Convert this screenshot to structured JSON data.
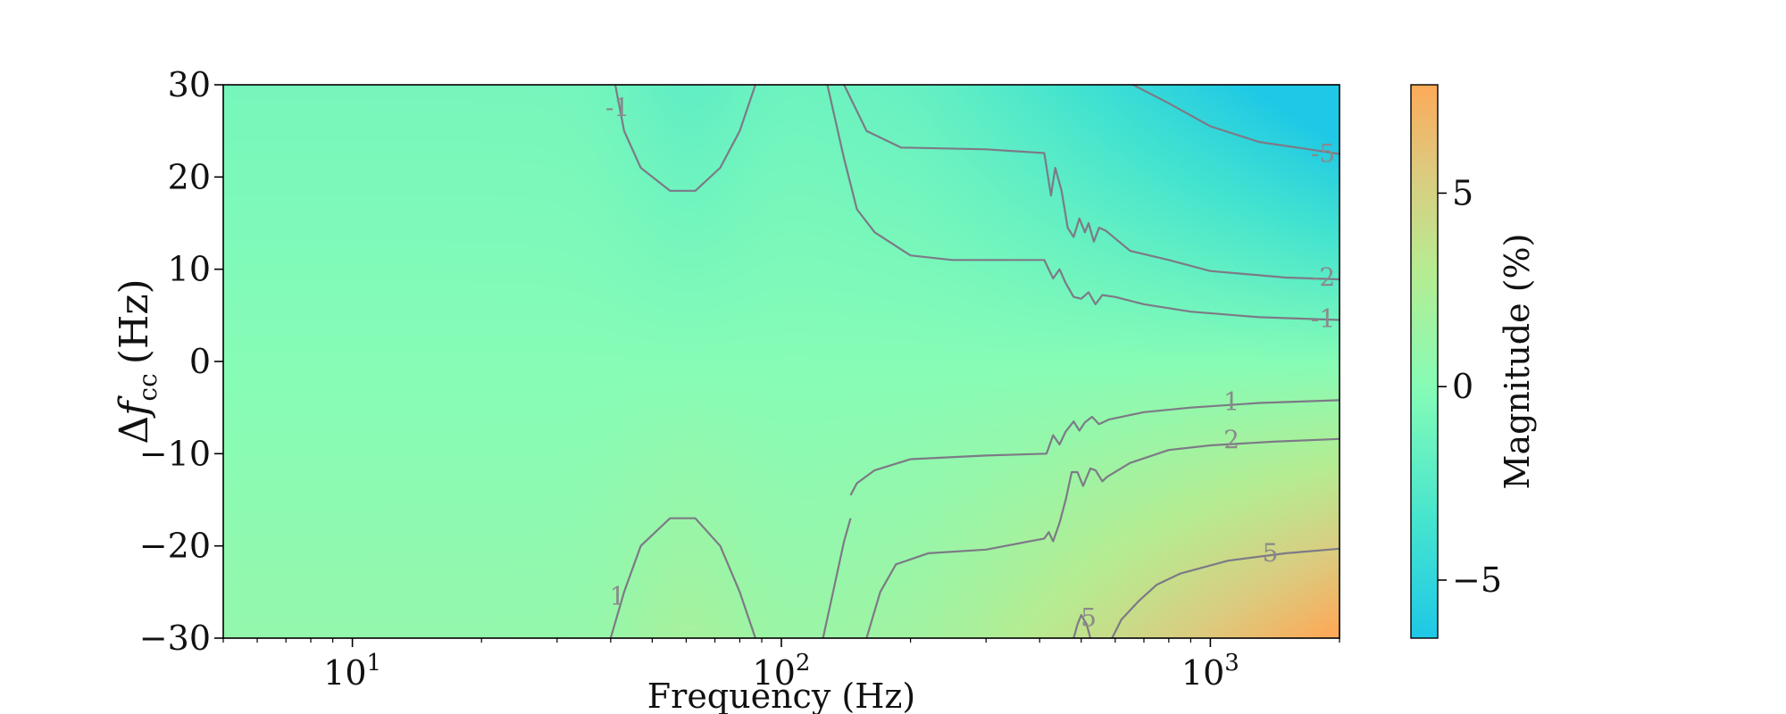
{
  "chart_data": {
    "type": "heatmap",
    "subtype": "filled-contour",
    "title": "",
    "xlabel": "Frequency (Hz)",
    "ylabel": "Δf_cc (Hz)",
    "ylabel_parts": {
      "prefix": "Δ",
      "symbol": "f",
      "subscript": "cc",
      "suffix": "(Hz)"
    },
    "xscale": "log",
    "xlim": [
      5,
      2000
    ],
    "ylim": [
      -30,
      30
    ],
    "xticks": [
      {
        "value": 10,
        "base": "10",
        "exp": "1"
      },
      {
        "value": 100,
        "base": "10",
        "exp": "2"
      },
      {
        "value": 1000,
        "base": "10",
        "exp": "3"
      }
    ],
    "yticks": [
      {
        "value": 30,
        "label": "30"
      },
      {
        "value": 20,
        "label": "20"
      },
      {
        "value": 10,
        "label": "10"
      },
      {
        "value": 0,
        "label": "0"
      },
      {
        "value": -10,
        "label": "−10"
      },
      {
        "value": -20,
        "label": "−20"
      },
      {
        "value": -30,
        "label": "−30"
      }
    ],
    "colorbar": {
      "label": "Magnitude (%)",
      "range": [
        -6.5,
        7.8
      ],
      "ticks": [
        {
          "value": 5,
          "label": "5"
        },
        {
          "value": 0,
          "label": "0"
        },
        {
          "value": -5,
          "label": "−5"
        }
      ],
      "colors": [
        "#1ec8e6",
        "#45e4cf",
        "#86fcb6",
        "#b6ec92",
        "#dccb7f",
        "#fdaa58"
      ],
      "stops": [
        -6.5,
        -3.5,
        0,
        3,
        5.5,
        7.8
      ]
    },
    "contours": [
      {
        "level": -5,
        "label": "-5",
        "label_at": [
          1830,
          22.5
        ],
        "points": [
          [
            660,
            30
          ],
          [
            800,
            28
          ],
          [
            1000,
            25.5
          ],
          [
            1300,
            23.8
          ],
          [
            1700,
            23
          ],
          [
            2000,
            22.5
          ]
        ]
      },
      {
        "level": -2,
        "label": "-2",
        "label_at": [
          1830,
          9.1
        ],
        "points": [
          [
            140,
            30
          ],
          [
            158,
            25
          ],
          [
            190,
            23.2
          ],
          [
            300,
            23
          ],
          [
            410,
            22.6
          ],
          [
            425,
            18
          ],
          [
            435,
            21
          ],
          [
            450,
            18.5
          ],
          [
            465,
            14.5
          ],
          [
            480,
            13.5
          ],
          [
            495,
            15.5
          ],
          [
            510,
            14
          ],
          [
            520,
            15
          ],
          [
            535,
            13
          ],
          [
            550,
            14.5
          ],
          [
            570,
            14.2
          ],
          [
            650,
            12
          ],
          [
            800,
            11
          ],
          [
            1000,
            9.8
          ],
          [
            1500,
            9.1
          ],
          [
            2000,
            8.9
          ]
        ]
      },
      {
        "level": -1,
        "label": "-1",
        "label_at": [
          1830,
          4.6
        ],
        "points": [
          [
            128,
            30
          ],
          [
            140,
            22
          ],
          [
            150,
            16.5
          ],
          [
            165,
            14
          ],
          [
            200,
            11.5
          ],
          [
            250,
            11
          ],
          [
            410,
            11
          ],
          [
            430,
            9
          ],
          [
            445,
            10
          ],
          [
            460,
            8.5
          ],
          [
            480,
            7
          ],
          [
            500,
            6.8
          ],
          [
            520,
            7.5
          ],
          [
            540,
            6.2
          ],
          [
            560,
            7.2
          ],
          [
            600,
            7
          ],
          [
            700,
            6.2
          ],
          [
            900,
            5.4
          ],
          [
            1300,
            4.8
          ],
          [
            2000,
            4.5
          ]
        ]
      },
      {
        "level": -1,
        "label": "-1",
        "label_at": [
          41.5,
          27.5
        ],
        "points": [
          [
            41,
            30
          ],
          [
            43,
            25
          ],
          [
            47,
            21
          ],
          [
            55,
            18.5
          ],
          [
            63,
            18.5
          ],
          [
            72,
            21
          ],
          [
            80,
            25
          ],
          [
            87,
            30
          ]
        ]
      },
      {
        "level": 1,
        "label": "1",
        "label_at": [
          1120,
          -4.4
        ],
        "points": [
          [
            2000,
            -4.2
          ],
          [
            1300,
            -4.5
          ],
          [
            900,
            -5
          ],
          [
            700,
            -5.5
          ],
          [
            580,
            -6.3
          ],
          [
            550,
            -6.8
          ],
          [
            530,
            -6
          ],
          [
            510,
            -6.6
          ],
          [
            495,
            -7.5
          ],
          [
            480,
            -6.5
          ],
          [
            460,
            -7.6
          ],
          [
            445,
            -9
          ],
          [
            430,
            -8
          ],
          [
            415,
            -10
          ],
          [
            300,
            -10.2
          ],
          [
            200,
            -10.6
          ],
          [
            165,
            -11.8
          ],
          [
            150,
            -13.2
          ],
          [
            145,
            -14.5
          ]
        ]
      },
      {
        "level": 2,
        "label": "2",
        "label_at": [
          1120,
          -8.5
        ],
        "points": [
          [
            2000,
            -8.4
          ],
          [
            1400,
            -8.7
          ],
          [
            1000,
            -9.1
          ],
          [
            800,
            -9.6
          ],
          [
            650,
            -11
          ],
          [
            575,
            -12.5
          ],
          [
            560,
            -13
          ],
          [
            540,
            -11.8
          ],
          [
            525,
            -11.6
          ],
          [
            505,
            -13.5
          ],
          [
            490,
            -12
          ],
          [
            475,
            -12
          ],
          [
            460,
            -15
          ],
          [
            445,
            -17.5
          ],
          [
            430,
            -19.5
          ],
          [
            420,
            -18.5
          ],
          [
            410,
            -19.2
          ],
          [
            300,
            -20.4
          ],
          [
            220,
            -20.8
          ],
          [
            185,
            -22
          ],
          [
            170,
            -25
          ],
          [
            158,
            -30
          ]
        ]
      },
      {
        "level": 5,
        "label": "5",
        "label_at": [
          1380,
          -20.8
        ],
        "points": [
          [
            2000,
            -20.3
          ],
          [
            1500,
            -20.8
          ],
          [
            1100,
            -21.6
          ],
          [
            850,
            -23
          ],
          [
            750,
            -24.2
          ],
          [
            680,
            -26
          ],
          [
            620,
            -28
          ],
          [
            590,
            -30
          ]
        ]
      },
      {
        "level": 1,
        "label": "1",
        "label_at": [
          41.5,
          -25.5
        ],
        "points": [
          [
            87,
            -30
          ],
          [
            80,
            -25
          ],
          [
            72,
            -20
          ],
          [
            63,
            -17
          ],
          [
            55,
            -17
          ],
          [
            47,
            -20
          ],
          [
            43,
            -25
          ],
          [
            40,
            -30
          ]
        ]
      },
      {
        "level": 5,
        "label": "5",
        "label_at": [
          520,
          -27.8
        ],
        "points": [
          [
            480,
            -30
          ],
          [
            490,
            -28.5
          ],
          [
            500,
            -27.5
          ],
          [
            515,
            -28.5
          ],
          [
            525,
            -30
          ]
        ]
      },
      {
        "level": 3,
        "label": "",
        "points": [
          [
            125,
            -30
          ],
          [
            132,
            -25
          ],
          [
            140,
            -19.5
          ],
          [
            145,
            -17
          ]
        ]
      }
    ],
    "field_model": "smooth approximation: gradient in y at high frequency, bumps near 60 Hz"
  }
}
